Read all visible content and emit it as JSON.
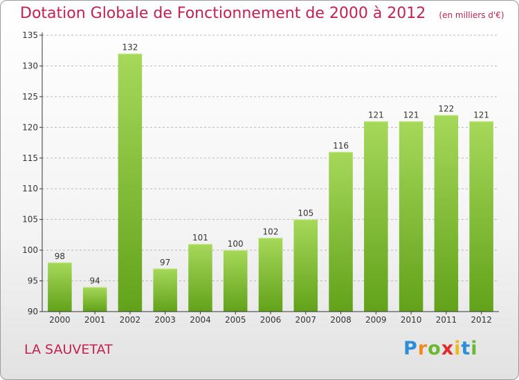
{
  "title": "Dotation Globale de Fonctionnement de 2000 à 2012",
  "subtitle": "(en milliers d'€)",
  "commune": "LA SAUVETAT",
  "logo": {
    "text": "Proxiti",
    "letters": [
      {
        "ch": "P",
        "color": "#2a8fd8"
      },
      {
        "ch": "r",
        "color": "#f08a1c"
      },
      {
        "ch": "o",
        "color": "#6ab832"
      },
      {
        "ch": "x",
        "color": "#e02a2a"
      },
      {
        "ch": "i",
        "color": "#f0b81c"
      },
      {
        "ch": "t",
        "color": "#2a8fd8"
      },
      {
        "ch": "i",
        "color": "#6ab832"
      }
    ]
  },
  "colors": {
    "bar_light": "#a6d85a",
    "bar_dark": "#62a21a",
    "accent": "#c42050",
    "grid": "#b8b8b8"
  },
  "chart_data": {
    "type": "bar",
    "title": "Dotation Globale de Fonctionnement de 2000 à 2012",
    "subtitle": "(en milliers d'€)",
    "categories": [
      "2000",
      "2001",
      "2002",
      "2003",
      "2004",
      "2005",
      "2006",
      "2007",
      "2008",
      "2009",
      "2010",
      "2011",
      "2012"
    ],
    "values": [
      98,
      94,
      132,
      97,
      101,
      100,
      102,
      105,
      116,
      121,
      121,
      122,
      121
    ],
    "ylim": [
      90,
      135
    ],
    "yticks": [
      90,
      95,
      100,
      105,
      110,
      115,
      120,
      125,
      130,
      135
    ],
    "grid": true
  }
}
